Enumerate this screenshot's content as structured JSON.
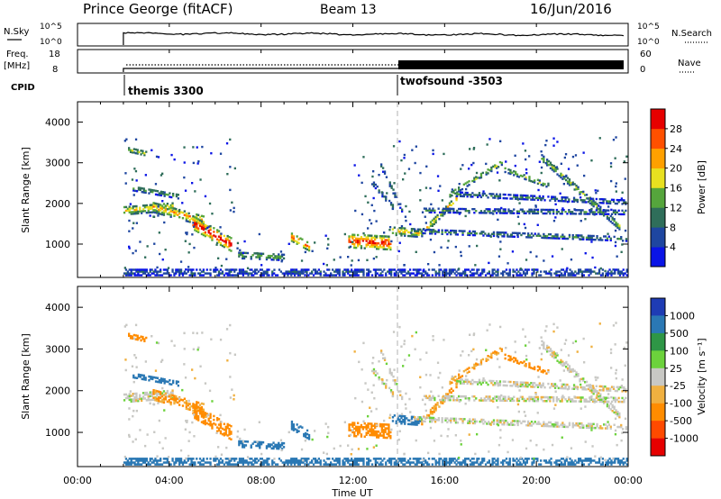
{
  "header": {
    "station": "Prince George (fitACF)",
    "beam": "Beam 13",
    "date": "16/Jun/2016"
  },
  "noise_panel": {
    "left_label": "N.Sky",
    "left_ticks": [
      "10^5",
      "10^0"
    ],
    "right_label": "N.Search",
    "right_ticks": [
      "10^5",
      "10^0"
    ]
  },
  "freq_panel": {
    "left_label_1": "Freq.",
    "left_label_2": "[MHz]",
    "left_ticks": [
      "18",
      "8"
    ],
    "right_label": "Nave",
    "right_ticks": [
      "60",
      "0"
    ]
  },
  "cpid_panel": {
    "label": "CPID",
    "segments": [
      {
        "start_hour": 2,
        "name": "themis 3300"
      },
      {
        "start_hour": 14,
        "name": "twofsound -3503"
      }
    ]
  },
  "x_axis": {
    "title": "Time UT",
    "ticks": [
      "00:00",
      "04:00",
      "08:00",
      "12:00",
      "16:00",
      "20:00",
      "00:00"
    ],
    "tick_hours": [
      0,
      4,
      8,
      12,
      16,
      20,
      24
    ]
  },
  "chart_data": [
    {
      "type": "heatmap",
      "ylabel": "Slant Range [km]",
      "yticks": [
        "1000",
        "2000",
        "3000",
        "4000"
      ],
      "ylim": [
        180,
        4500
      ],
      "xlim_hours": [
        0,
        24
      ],
      "colorbar_label": "Power [dB]",
      "colorbar_ticks": [
        "4",
        "8",
        "12",
        "16",
        "20",
        "24",
        "28"
      ],
      "colorbar_range": [
        0,
        30
      ],
      "colors": [
        "#0a14e6",
        "#1e46a0",
        "#2f6e5a",
        "#55a53c",
        "#e8e020",
        "#ffa000",
        "#ff5000",
        "#e60000"
      ]
    },
    {
      "type": "heatmap",
      "ylabel": "Slant Range [km]",
      "yticks": [
        "1000",
        "2000",
        "3000",
        "4000"
      ],
      "ylim": [
        180,
        4500
      ],
      "xlim_hours": [
        0,
        24
      ],
      "colorbar_label": "Velocity [m s⁻¹]",
      "colorbar_ticks": [
        "1000",
        "500",
        "100",
        "25",
        "-25",
        "-100",
        "-500",
        "-1000"
      ],
      "colorbar_range": [
        -1000,
        1000
      ],
      "colors": [
        "#1e3cb4",
        "#2a78b4",
        "#2e9646",
        "#6cd23c",
        "#c8c8c4",
        "#f0b040",
        "#ff8c00",
        "#ff4a00",
        "#e60000"
      ]
    }
  ],
  "features": [
    {
      "t0": 2.0,
      "t1": 4.2,
      "r0": 1800,
      "r1": 1900,
      "w": 200,
      "power": 16,
      "vel": 0
    },
    {
      "t0": 3.2,
      "t1": 5.5,
      "r0": 1900,
      "r1": 1550,
      "w": 260,
      "power": 18,
      "vel": -100
    },
    {
      "t0": 5.0,
      "t1": 6.7,
      "r0": 1500,
      "r1": 950,
      "w": 320,
      "power": 26,
      "vel": -300
    },
    {
      "t0": 2.2,
      "t1": 3.0,
      "r0": 3300,
      "r1": 3200,
      "w": 110,
      "power": 14,
      "vel": -300
    },
    {
      "t0": 2.4,
      "t1": 4.4,
      "r0": 2350,
      "r1": 2150,
      "w": 120,
      "power": 10,
      "vel": 200
    },
    {
      "t0": 7.0,
      "t1": 9.0,
      "r0": 700,
      "r1": 650,
      "w": 150,
      "power": 12,
      "vel": 200
    },
    {
      "t0": 9.3,
      "t1": 10.1,
      "r0": 1150,
      "r1": 900,
      "w": 200,
      "power": 22,
      "vel": 200
    },
    {
      "t0": 11.8,
      "t1": 13.6,
      "r0": 1050,
      "r1": 1000,
      "w": 320,
      "power": 24,
      "vel": -150
    },
    {
      "t0": 13.7,
      "t1": 14.9,
      "r0": 1300,
      "r1": 1250,
      "w": 200,
      "power": 16,
      "vel": 200
    },
    {
      "t0": 14.9,
      "t1": 16.5,
      "r0": 1200,
      "r1": 2100,
      "w": 150,
      "power": 16,
      "vel": -100
    },
    {
      "t0": 16.2,
      "t1": 18.5,
      "r0": 2200,
      "r1": 3000,
      "w": 120,
      "power": 14,
      "vel": -100
    },
    {
      "t0": 18.6,
      "t1": 20.6,
      "r0": 2800,
      "r1": 2400,
      "w": 110,
      "power": 13,
      "vel": -150
    },
    {
      "t0": 20.2,
      "t1": 23.6,
      "r0": 3100,
      "r1": 1400,
      "w": 150,
      "power": 14,
      "vel": 0
    },
    {
      "t0": 14.5,
      "t1": 23.9,
      "r0": 1300,
      "r1": 1100,
      "w": 100,
      "power": 9,
      "vel": 0
    },
    {
      "t0": 15.0,
      "t1": 23.9,
      "r0": 1800,
      "r1": 1750,
      "w": 90,
      "power": 9,
      "vel": 0
    },
    {
      "t0": 16.5,
      "t1": 23.9,
      "r0": 2200,
      "r1": 2000,
      "w": 90,
      "power": 8,
      "vel": 0
    },
    {
      "t0": 2.0,
      "t1": 23.9,
      "r0": 280,
      "r1": 280,
      "w": 150,
      "power": 6,
      "vel": 300
    },
    {
      "t0": 12.8,
      "t1": 13.7,
      "r0": 2500,
      "r1": 1900,
      "w": 110,
      "power": 8,
      "vel": 0
    },
    {
      "t0": 13.2,
      "t1": 14.3,
      "r0": 2900,
      "r1": 1600,
      "w": 120,
      "power": 8,
      "vel": 0
    }
  ]
}
